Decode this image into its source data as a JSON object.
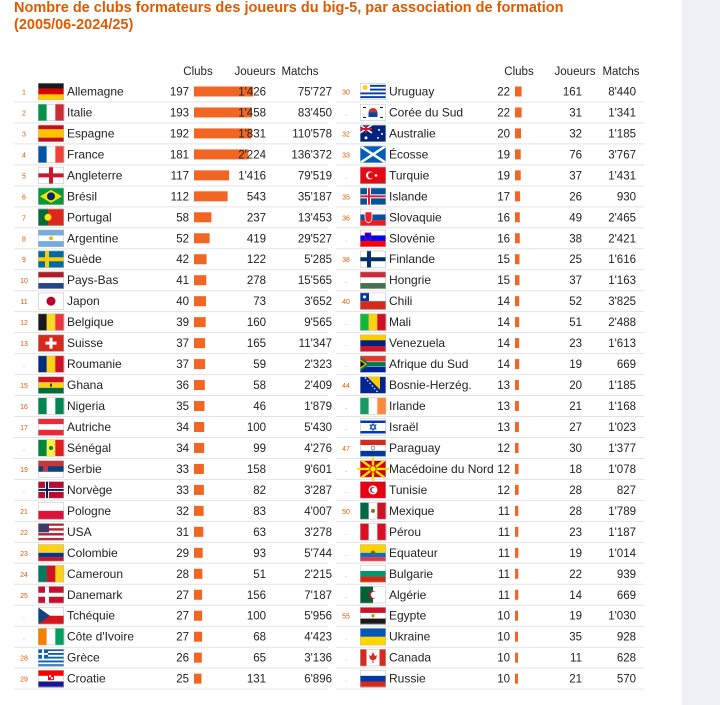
{
  "title_lines": [
    "Nombre de clubs formateurs des joueurs du big-5, par association de formation",
    "(2005/06-2024/25)"
  ],
  "headers": {
    "clubs": "Clubs",
    "joueurs": "Joueurs",
    "matchs": "Matchs"
  },
  "colors": {
    "title": "#e05a00",
    "bar": "#f26522",
    "rank": "#e05a00",
    "row_line": "#e3e3e3"
  },
  "chart_data": {
    "type": "table",
    "title": "Nombre de clubs formateurs des joueurs du big-5, par association de formation (2005/06-2024/25)",
    "columns": [
      "Clubs",
      "Joueurs",
      "Matchs"
    ],
    "rows": [
      {
        "rank": "1",
        "country": "Allemagne",
        "flag": "de",
        "clubs": 197,
        "joueurs": "1'426",
        "matchs": "75'727"
      },
      {
        "rank": "2",
        "country": "Italie",
        "flag": "it",
        "clubs": 193,
        "joueurs": "1'458",
        "matchs": "83'450"
      },
      {
        "rank": "3",
        "country": "Espagne",
        "flag": "es",
        "clubs": 192,
        "joueurs": "1'831",
        "matchs": "110'578"
      },
      {
        "rank": "4",
        "country": "France",
        "flag": "fr",
        "clubs": 181,
        "joueurs": "2'224",
        "matchs": "136'372"
      },
      {
        "rank": "5",
        "country": "Angleterre",
        "flag": "en",
        "clubs": 117,
        "joueurs": "1'416",
        "matchs": "79'519"
      },
      {
        "rank": "6",
        "country": "Brésil",
        "flag": "br",
        "clubs": 112,
        "joueurs": "543",
        "matchs": "35'187"
      },
      {
        "rank": "7",
        "country": "Portugal",
        "flag": "pt",
        "clubs": 58,
        "joueurs": "237",
        "matchs": "13'453"
      },
      {
        "rank": "8",
        "country": "Argentine",
        "flag": "ar",
        "clubs": 52,
        "joueurs": "419",
        "matchs": "29'527"
      },
      {
        "rank": "9",
        "country": "Suède",
        "flag": "se",
        "clubs": 42,
        "joueurs": "122",
        "matchs": "5'285"
      },
      {
        "rank": "10",
        "country": "Pays-Bas",
        "flag": "nl",
        "clubs": 41,
        "joueurs": "278",
        "matchs": "15'565"
      },
      {
        "rank": "11",
        "country": "Japon",
        "flag": "jp",
        "clubs": 40,
        "joueurs": "73",
        "matchs": "3'652"
      },
      {
        "rank": "12",
        "country": "Belgique",
        "flag": "be",
        "clubs": 39,
        "joueurs": "160",
        "matchs": "9'565"
      },
      {
        "rank": "13",
        "country": "Suisse",
        "flag": "ch",
        "clubs": 37,
        "joueurs": "165",
        "matchs": "11'347"
      },
      {
        "rank": ".",
        "country": "Roumanie",
        "flag": "ro",
        "clubs": 37,
        "joueurs": "59",
        "matchs": "2'323"
      },
      {
        "rank": "15",
        "country": "Ghana",
        "flag": "gh",
        "clubs": 36,
        "joueurs": "58",
        "matchs": "2'409"
      },
      {
        "rank": "16",
        "country": "Nigeria",
        "flag": "ng",
        "clubs": 35,
        "joueurs": "46",
        "matchs": "1'879"
      },
      {
        "rank": "17",
        "country": "Autriche",
        "flag": "at",
        "clubs": 34,
        "joueurs": "100",
        "matchs": "5'430"
      },
      {
        "rank": ".",
        "country": "Sénégal",
        "flag": "sn",
        "clubs": 34,
        "joueurs": "99",
        "matchs": "4'276"
      },
      {
        "rank": "19",
        "country": "Serbie",
        "flag": "rs",
        "clubs": 33,
        "joueurs": "158",
        "matchs": "9'601"
      },
      {
        "rank": ".",
        "country": "Norvège",
        "flag": "no",
        "clubs": 33,
        "joueurs": "82",
        "matchs": "3'287"
      },
      {
        "rank": "21",
        "country": "Pologne",
        "flag": "pl",
        "clubs": 32,
        "joueurs": "83",
        "matchs": "4'007"
      },
      {
        "rank": "22",
        "country": "USA",
        "flag": "us",
        "clubs": 31,
        "joueurs": "63",
        "matchs": "3'278"
      },
      {
        "rank": "23",
        "country": "Colombie",
        "flag": "co",
        "clubs": 29,
        "joueurs": "93",
        "matchs": "5'744"
      },
      {
        "rank": "24",
        "country": "Cameroun",
        "flag": "cm",
        "clubs": 28,
        "joueurs": "51",
        "matchs": "2'215"
      },
      {
        "rank": "25",
        "country": "Danemark",
        "flag": "dk",
        "clubs": 27,
        "joueurs": "156",
        "matchs": "7'187"
      },
      {
        "rank": ".",
        "country": "Tchéquie",
        "flag": "cz",
        "clubs": 27,
        "joueurs": "100",
        "matchs": "5'956"
      },
      {
        "rank": ".",
        "country": "Côte d'Ivoire",
        "flag": "ci",
        "clubs": 27,
        "joueurs": "68",
        "matchs": "4'423"
      },
      {
        "rank": "28",
        "country": "Grèce",
        "flag": "gr",
        "clubs": 26,
        "joueurs": "65",
        "matchs": "3'136"
      },
      {
        "rank": "29",
        "country": "Croatie",
        "flag": "hr",
        "clubs": 25,
        "joueurs": "131",
        "matchs": "6'896"
      },
      {
        "rank": "30",
        "country": "Uruguay",
        "flag": "uy",
        "clubs": 22,
        "joueurs": "161",
        "matchs": "8'440"
      },
      {
        "rank": ".",
        "country": "Corée du Sud",
        "flag": "kr",
        "clubs": 22,
        "joueurs": "31",
        "matchs": "1'341"
      },
      {
        "rank": "32",
        "country": "Australie",
        "flag": "au",
        "clubs": 20,
        "joueurs": "32",
        "matchs": "1'185"
      },
      {
        "rank": "33",
        "country": "Écosse",
        "flag": "sc",
        "clubs": 19,
        "joueurs": "76",
        "matchs": "3'767"
      },
      {
        "rank": ".",
        "country": "Turquie",
        "flag": "tr",
        "clubs": 19,
        "joueurs": "37",
        "matchs": "1'431"
      },
      {
        "rank": "35",
        "country": "Islande",
        "flag": "is",
        "clubs": 17,
        "joueurs": "26",
        "matchs": "930"
      },
      {
        "rank": "36",
        "country": "Slovaquie",
        "flag": "sk",
        "clubs": 16,
        "joueurs": "49",
        "matchs": "2'465"
      },
      {
        "rank": ".",
        "country": "Slovénie",
        "flag": "si",
        "clubs": 16,
        "joueurs": "38",
        "matchs": "2'421"
      },
      {
        "rank": "38",
        "country": "Finlande",
        "flag": "fi",
        "clubs": 15,
        "joueurs": "25",
        "matchs": "1'616"
      },
      {
        "rank": ".",
        "country": "Hongrie",
        "flag": "hu",
        "clubs": 15,
        "joueurs": "37",
        "matchs": "1'163"
      },
      {
        "rank": "40",
        "country": "Chili",
        "flag": "cl",
        "clubs": 14,
        "joueurs": "52",
        "matchs": "3'825"
      },
      {
        "rank": ".",
        "country": "Mali",
        "flag": "ml",
        "clubs": 14,
        "joueurs": "51",
        "matchs": "2'488"
      },
      {
        "rank": ".",
        "country": "Venezuela",
        "flag": "ve",
        "clubs": 14,
        "joueurs": "23",
        "matchs": "1'613"
      },
      {
        "rank": ".",
        "country": "Afrique du Sud",
        "flag": "za",
        "clubs": 14,
        "joueurs": "19",
        "matchs": "669"
      },
      {
        "rank": "44",
        "country": "Bosnie-Herzég.",
        "flag": "ba",
        "clubs": 13,
        "joueurs": "20",
        "matchs": "1'185"
      },
      {
        "rank": ".",
        "country": "Irlande",
        "flag": "ie",
        "clubs": 13,
        "joueurs": "21",
        "matchs": "1'168"
      },
      {
        "rank": ".",
        "country": "Israël",
        "flag": "il",
        "clubs": 13,
        "joueurs": "27",
        "matchs": "1'023"
      },
      {
        "rank": "47",
        "country": "Paraguay",
        "flag": "py",
        "clubs": 12,
        "joueurs": "30",
        "matchs": "1'377"
      },
      {
        "rank": ".",
        "country": "Macédoine du Nord",
        "flag": "mk",
        "clubs": 12,
        "joueurs": "18",
        "matchs": "1'078"
      },
      {
        "rank": ".",
        "country": "Tunisie",
        "flag": "tn",
        "clubs": 12,
        "joueurs": "28",
        "matchs": "827"
      },
      {
        "rank": "50",
        "country": "Mexique",
        "flag": "mx",
        "clubs": 11,
        "joueurs": "28",
        "matchs": "1'789"
      },
      {
        "rank": ".",
        "country": "Pérou",
        "flag": "pe",
        "clubs": 11,
        "joueurs": "23",
        "matchs": "1'187"
      },
      {
        "rank": ".",
        "country": "Equateur",
        "flag": "ec",
        "clubs": 11,
        "joueurs": "19",
        "matchs": "1'014"
      },
      {
        "rank": ".",
        "country": "Bulgarie",
        "flag": "bg",
        "clubs": 11,
        "joueurs": "22",
        "matchs": "939"
      },
      {
        "rank": ".",
        "country": "Algérie",
        "flag": "dz",
        "clubs": 11,
        "joueurs": "14",
        "matchs": "669"
      },
      {
        "rank": "55",
        "country": "Egypte",
        "flag": "eg",
        "clubs": 10,
        "joueurs": "19",
        "matchs": "1'030"
      },
      {
        "rank": ".",
        "country": "Ukraine",
        "flag": "ua",
        "clubs": 10,
        "joueurs": "35",
        "matchs": "928"
      },
      {
        "rank": ".",
        "country": "Canada",
        "flag": "ca",
        "clubs": 10,
        "joueurs": "11",
        "matchs": "628"
      },
      {
        "rank": ".",
        "country": "Russie",
        "flag": "ru",
        "clubs": 10,
        "joueurs": "21",
        "matchs": "570"
      }
    ]
  }
}
